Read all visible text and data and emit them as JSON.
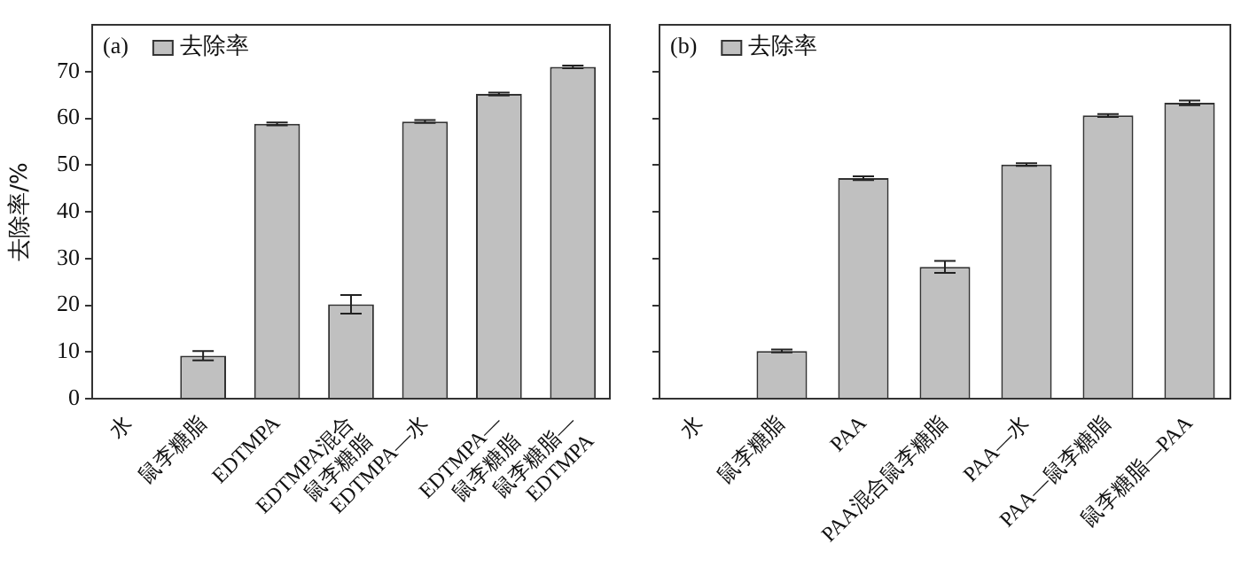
{
  "chart_data": [
    {
      "type": "bar",
      "ylabel": "去除率/%",
      "annotations": [
        "(a)"
      ],
      "categories": [
        "水",
        "鼠李糖脂",
        "EDTMPA",
        "EDTMPA混合\n鼠李糖脂",
        "EDTMPA—水",
        "EDTMPA—\n鼠李糖脂",
        "鼠李糖脂—\nEDTMPA"
      ],
      "series": [
        {
          "name": "去除率",
          "color": "#c0c0c0",
          "values": [
            0,
            9.2,
            58.8,
            20.2,
            59.3,
            65.2,
            71.0
          ],
          "errors": [
            null,
            1.0,
            0.3,
            2.0,
            0.3,
            0.3,
            0.3
          ]
        }
      ],
      "ylim": [
        0,
        80
      ],
      "yticks": [
        0,
        10,
        20,
        30,
        40,
        50,
        60,
        70
      ],
      "grid": false,
      "legend": "top left"
    },
    {
      "type": "bar",
      "annotations": [
        "(b)"
      ],
      "categories": [
        "水",
        "鼠李糖脂",
        "PAA",
        "PAA混合鼠李糖脂",
        "PAA—水",
        "PAA—鼠李糖脂",
        "鼠李糖脂—PAA"
      ],
      "series": [
        {
          "name": "去除率",
          "color": "#c0c0c0",
          "values": [
            0,
            10.2,
            47.2,
            28.2,
            50.1,
            60.6,
            63.3
          ],
          "errors": [
            null,
            0.3,
            0.4,
            1.3,
            0.3,
            0.3,
            0.5
          ]
        }
      ],
      "ylim": [
        0,
        80
      ],
      "yticks": [
        0,
        10,
        20,
        30,
        40,
        50,
        60,
        70
      ],
      "grid": false,
      "legend": "top left",
      "tick_labels": "x"
    }
  ]
}
